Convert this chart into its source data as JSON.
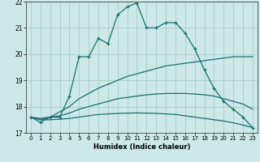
{
  "xlabel": "Humidex (Indice chaleur)",
  "background_color": "#cce8e8",
  "grid_color": "#aacccc",
  "line_color": "#1a6e6e",
  "x_ticks": [
    0,
    1,
    2,
    3,
    4,
    5,
    6,
    7,
    8,
    9,
    10,
    11,
    12,
    13,
    14,
    15,
    16,
    17,
    18,
    19,
    20,
    21,
    22,
    23
  ],
  "ylim": [
    17,
    22
  ],
  "yticks": [
    17,
    18,
    19,
    20,
    21,
    22
  ],
  "curve1_x": [
    0,
    1,
    2,
    3,
    4,
    5,
    6,
    7,
    8,
    9,
    10,
    11,
    12,
    13,
    14,
    15,
    16,
    17,
    18,
    19,
    20,
    21,
    22,
    23
  ],
  "curve1_y": [
    17.6,
    17.4,
    17.6,
    17.6,
    18.4,
    19.9,
    19.9,
    20.6,
    20.4,
    21.5,
    21.8,
    21.95,
    21.0,
    21.0,
    21.2,
    21.2,
    20.8,
    20.2,
    19.4,
    18.7,
    18.2,
    17.9,
    17.6,
    17.2
  ],
  "curve2_x": [
    0,
    1,
    2,
    3,
    4,
    5,
    6,
    7,
    8,
    9,
    10,
    11,
    12,
    13,
    14,
    15,
    16,
    17,
    18,
    19,
    20,
    21,
    22,
    23
  ],
  "curve2_y": [
    17.6,
    17.5,
    17.6,
    17.8,
    18.0,
    18.3,
    18.5,
    18.7,
    18.85,
    19.0,
    19.15,
    19.25,
    19.35,
    19.45,
    19.55,
    19.6,
    19.65,
    19.7,
    19.75,
    19.8,
    19.85,
    19.9,
    19.9,
    19.9
  ],
  "curve3_x": [
    0,
    1,
    2,
    3,
    4,
    5,
    6,
    7,
    8,
    9,
    10,
    11,
    12,
    13,
    14,
    15,
    16,
    17,
    18,
    19,
    20,
    21,
    22,
    23
  ],
  "curve3_y": [
    17.6,
    17.55,
    17.6,
    17.65,
    17.75,
    17.9,
    18.0,
    18.1,
    18.2,
    18.3,
    18.35,
    18.4,
    18.45,
    18.48,
    18.5,
    18.5,
    18.5,
    18.48,
    18.45,
    18.4,
    18.3,
    18.2,
    18.1,
    17.9
  ],
  "curve4_x": [
    0,
    1,
    2,
    3,
    4,
    5,
    6,
    7,
    8,
    9,
    10,
    11,
    12,
    13,
    14,
    15,
    16,
    17,
    18,
    19,
    20,
    21,
    22,
    23
  ],
  "curve4_y": [
    17.6,
    17.5,
    17.5,
    17.52,
    17.55,
    17.6,
    17.65,
    17.7,
    17.72,
    17.74,
    17.75,
    17.76,
    17.75,
    17.74,
    17.72,
    17.7,
    17.65,
    17.6,
    17.55,
    17.5,
    17.45,
    17.38,
    17.3,
    17.2
  ]
}
